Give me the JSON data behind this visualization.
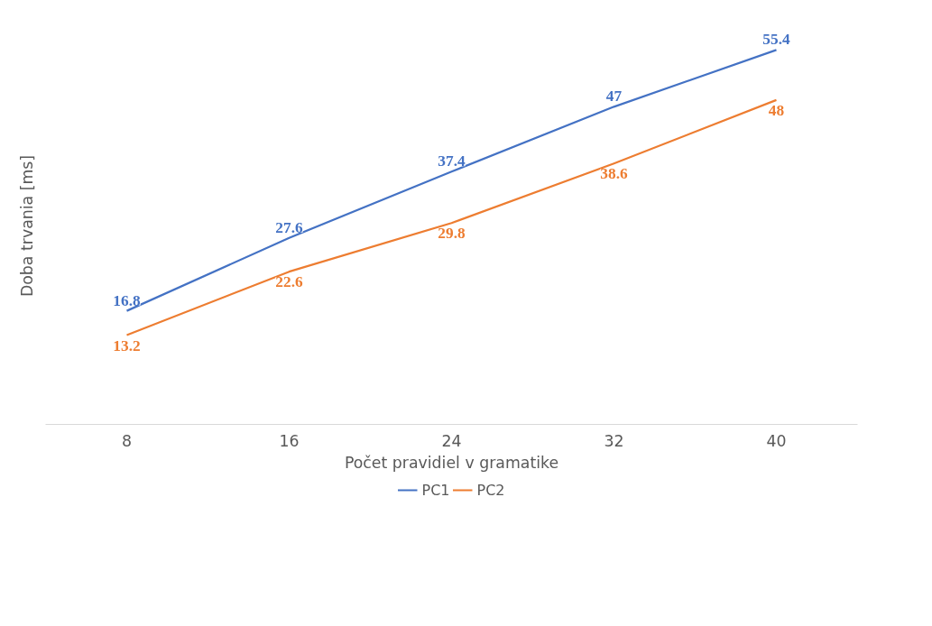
{
  "chart_data": {
    "type": "line",
    "xlabel": "Počet pravidiel v gramatike",
    "ylabel": "Doba trvania [ms]",
    "categories": [
      "8",
      "16",
      "24",
      "32",
      "40"
    ],
    "series": [
      {
        "name": "PC1",
        "color": "#4472c4",
        "values": [
          16.8,
          27.6,
          37.4,
          47,
          55.4
        ]
      },
      {
        "name": "PC2",
        "color": "#ed7d31",
        "values": [
          13.2,
          22.6,
          29.8,
          38.6,
          48
        ]
      }
    ],
    "data_labels": true,
    "legend": "bottom",
    "grid": false,
    "marker": "none",
    "line_style": "solid",
    "tick_labels": "x"
  }
}
